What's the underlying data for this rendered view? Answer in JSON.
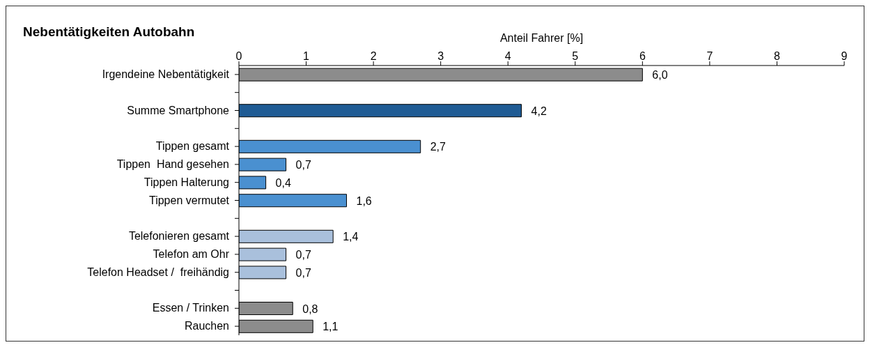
{
  "chart_data": {
    "type": "bar",
    "orientation": "horizontal",
    "title": "Nebentätigkeiten Autobahn",
    "xlabel": "Anteil Fahrer [%]",
    "categories": [
      "Irgendeine Nebentätigkeit",
      null,
      "Summe Smartphone",
      null,
      "Tippen gesamt",
      "Tippen  Hand gesehen",
      "Tippen Halterung",
      "Tippen vermutet",
      null,
      "Telefonieren gesamt",
      "Telefon am Ohr",
      "Telefon Headset /  freihändig",
      null,
      "Essen / Trinken",
      "Rauchen"
    ],
    "values": [
      6.0,
      null,
      4.2,
      null,
      2.7,
      0.7,
      0.4,
      1.6,
      null,
      1.4,
      0.7,
      0.7,
      null,
      0.8,
      1.1
    ],
    "value_labels": [
      "6,0",
      null,
      "4,2",
      null,
      "2,7",
      "0,7",
      "0,4",
      "1,6",
      null,
      "1,4",
      "0,7",
      "0,7",
      null,
      "0,8",
      "1,1"
    ],
    "colors": [
      "#8c8c8c",
      null,
      "#1f5b94",
      null,
      "#4a90d0",
      "#4a90d0",
      "#4a90d0",
      "#4a90d0",
      null,
      "#a9c0dc",
      "#a9c0dc",
      "#a9c0dc",
      null,
      "#8c8c8c",
      "#8c8c8c"
    ],
    "xlim": [
      0,
      9
    ],
    "xticks": [
      0,
      1,
      2,
      3,
      4,
      5,
      6,
      7,
      8,
      9
    ],
    "grid": false
  }
}
